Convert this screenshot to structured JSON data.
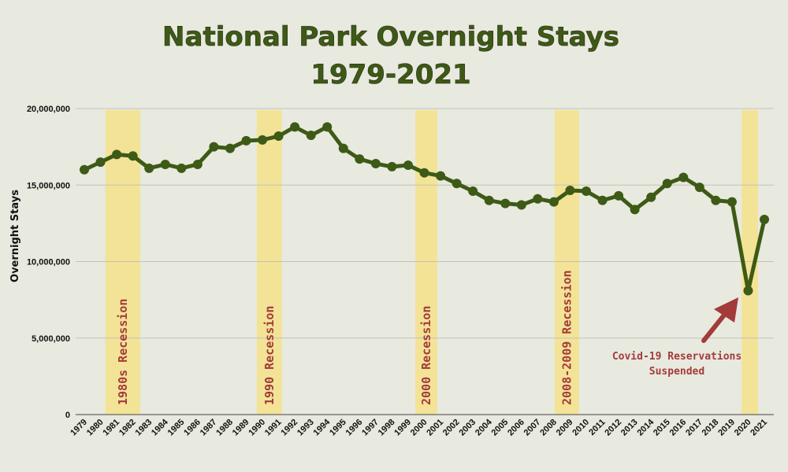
{
  "chart_data": {
    "type": "line",
    "title_line1": "National Park Overnight Stays",
    "title_line2": "1979-2021",
    "xlabel": "",
    "ylabel": "Overnight Stays",
    "ylim": [
      0,
      20000000
    ],
    "yticks": [
      0,
      5000000,
      10000000,
      15000000,
      20000000
    ],
    "ytick_labels": [
      "0",
      "5,000,000",
      "10,000,000",
      "15,000,000",
      "20,000,000"
    ],
    "grid": true,
    "x": [
      1979,
      1980,
      1981,
      1982,
      1983,
      1984,
      1985,
      1986,
      1987,
      1988,
      1989,
      1990,
      1991,
      1992,
      1993,
      1994,
      1995,
      1996,
      1997,
      1998,
      1999,
      2000,
      2001,
      2002,
      2003,
      2004,
      2005,
      2006,
      2007,
      2008,
      2009,
      2010,
      2011,
      2012,
      2013,
      2014,
      2015,
      2016,
      2017,
      2018,
      2019,
      2020,
      2021
    ],
    "series": [
      {
        "name": "Overnight Stays",
        "color": "#3d5a16",
        "values": [
          16000000,
          16500000,
          17000000,
          16900000,
          16100000,
          16350000,
          16100000,
          16350000,
          17500000,
          17400000,
          17900000,
          17950000,
          18200000,
          18800000,
          18250000,
          18800000,
          17400000,
          16700000,
          16400000,
          16200000,
          16300000,
          15800000,
          15600000,
          15100000,
          14600000,
          14000000,
          13800000,
          13700000,
          14100000,
          13900000,
          14650000,
          14600000,
          14000000,
          14300000,
          13400000,
          14200000,
          15100000,
          15500000,
          14850000,
          14000000,
          13900000,
          8100000,
          12750000
        ]
      }
    ],
    "bands": [
      {
        "label": "1980s Recession",
        "start": 1980.3,
        "end": 1982.45
      },
      {
        "label": "1990 Recession",
        "start": 1989.65,
        "end": 1991.2
      },
      {
        "label": "2000 Recession",
        "start": 1999.45,
        "end": 2000.8
      },
      {
        "label": "2008-2009 Recession",
        "start": 2008.05,
        "end": 2009.55
      },
      {
        "label": "",
        "start": 2019.6,
        "end": 2020.6
      }
    ],
    "band_color": "#f3e396",
    "annotation": {
      "line1": "Covid-19 Reservations",
      "line2": "Suspended",
      "color": "#a33b3b",
      "target_year": 2020
    }
  }
}
